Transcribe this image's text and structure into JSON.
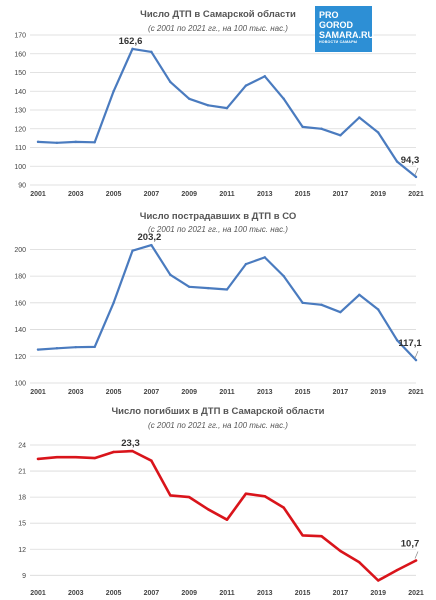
{
  "logo": {
    "line1": "PRO",
    "line2": "GOROD",
    "line3": "SAMARA.RU",
    "line4": "НОВОСТИ САМАРЫ"
  },
  "chart_data": [
    {
      "type": "line",
      "title": "Число ДТП в Самарской области",
      "subtitle": "(с 2001 по 2021 гг., на 100 тыс. нас.)",
      "color": "#4a7bbf",
      "x": [
        2001,
        2002,
        2003,
        2004,
        2005,
        2006,
        2007,
        2008,
        2009,
        2010,
        2011,
        2012,
        2013,
        2014,
        2015,
        2016,
        2017,
        2018,
        2019,
        2020,
        2021
      ],
      "values": [
        113,
        112.5,
        113,
        112.8,
        140,
        162.6,
        161,
        145,
        136,
        132.5,
        131,
        143,
        148,
        136,
        121,
        120,
        116.5,
        126,
        118,
        102.5,
        94.3
      ],
      "xticks": [
        "2001",
        "2003",
        "2005",
        "2007",
        "2009",
        "2011",
        "2013",
        "2015",
        "2017",
        "2019",
        "2021"
      ],
      "yticks": [
        "90",
        "100",
        "110",
        "120",
        "130",
        "140",
        "150",
        "160",
        "170"
      ],
      "ylim": [
        90,
        170
      ],
      "annotations": [
        {
          "x": 2006,
          "label": "162,6"
        },
        {
          "x": 2021,
          "label": "94,3"
        }
      ],
      "grid": true
    },
    {
      "type": "line",
      "title": "Число пострадавших в ДТП в СО",
      "subtitle": "(с 2001 по 2021 гг., на 100 тыс. нас.)",
      "color": "#4a7bbf",
      "x": [
        2001,
        2002,
        2003,
        2004,
        2005,
        2006,
        2007,
        2008,
        2009,
        2010,
        2011,
        2012,
        2013,
        2014,
        2015,
        2016,
        2017,
        2018,
        2019,
        2020,
        2021
      ],
      "values": [
        125,
        126,
        126.8,
        127,
        160,
        199,
        203.2,
        181,
        172,
        171,
        170,
        189,
        194,
        180,
        160,
        158.5,
        153,
        166,
        155,
        132,
        117.1
      ],
      "xticks": [
        "2001",
        "2003",
        "2005",
        "2007",
        "2009",
        "2011",
        "2013",
        "2015",
        "2017",
        "2019",
        "2021"
      ],
      "yticks": [
        "100",
        "120",
        "140",
        "160",
        "180",
        "200"
      ],
      "ylim": [
        100,
        210
      ],
      "annotations": [
        {
          "x": 2007,
          "label": "203,2"
        },
        {
          "x": 2021,
          "label": "117,1"
        }
      ],
      "grid": true
    },
    {
      "type": "line",
      "title": "Число погибших в ДТП в Самарской области",
      "subtitle": "(с 2001 по 2021 гг., на 100 тыс. нас.)",
      "color": "#d9141b",
      "x": [
        2001,
        2002,
        2003,
        2004,
        2005,
        2006,
        2007,
        2008,
        2009,
        2010,
        2011,
        2012,
        2013,
        2014,
        2015,
        2016,
        2017,
        2018,
        2019,
        2020,
        2021
      ],
      "values": [
        22.4,
        22.6,
        22.6,
        22.5,
        23.2,
        23.3,
        22.2,
        18.2,
        18,
        16.6,
        15.4,
        18.4,
        18.1,
        16.8,
        13.6,
        13.5,
        11.8,
        10.5,
        8.4,
        9.6,
        10.7
      ],
      "xticks": [
        "2001",
        "2003",
        "2005",
        "2007",
        "2009",
        "2011",
        "2013",
        "2015",
        "2017",
        "2019",
        "2021"
      ],
      "yticks": [
        "9",
        "12",
        "15",
        "18",
        "21",
        "24"
      ],
      "ylim": [
        8,
        25.5
      ],
      "annotations": [
        {
          "x": 2006,
          "label": "23,3"
        },
        {
          "x": 2021,
          "label": "10,7"
        }
      ],
      "grid": true
    }
  ]
}
